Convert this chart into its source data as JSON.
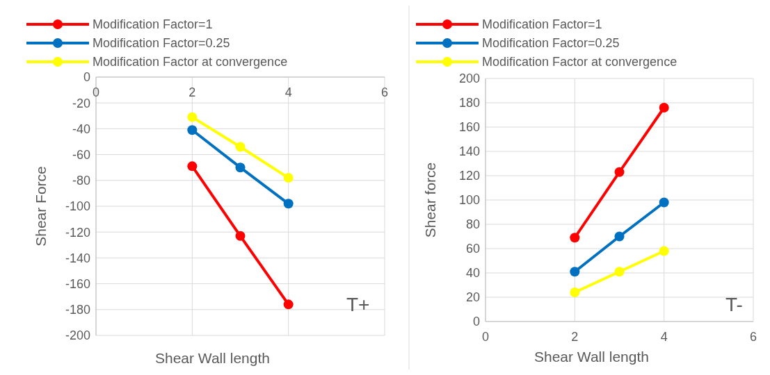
{
  "chart_data": [
    {
      "type": "line",
      "xlabel": "Shear Wall length",
      "ylabel": "Shear Force",
      "x": [
        2,
        3,
        4
      ],
      "xlim": [
        0,
        6
      ],
      "xticks": [
        0,
        2,
        4,
        6
      ],
      "ylim": [
        -200,
        0
      ],
      "yticks": [
        -200,
        -180,
        -160,
        -140,
        -120,
        -100,
        -80,
        -60,
        -40,
        -20,
        0
      ],
      "grid": true,
      "legend": "top",
      "marker": "circle",
      "annotations": [
        "T+"
      ],
      "series": [
        {
          "name": "Modification Factor=1",
          "color": "#ff0000",
          "values": [
            -69,
            -123,
            -176
          ]
        },
        {
          "name": "Modification Factor=0.25",
          "color": "#0070c0",
          "values": [
            -41,
            -70,
            -98
          ]
        },
        {
          "name": "Modification Factor at convergence",
          "color": "#ffff00",
          "values": [
            -31,
            -54,
            -78
          ]
        }
      ]
    },
    {
      "type": "line",
      "xlabel": "Shear Wall length",
      "ylabel": "Shear force",
      "x": [
        2,
        3,
        4
      ],
      "xlim": [
        0,
        6
      ],
      "xticks": [
        0,
        2,
        4,
        6
      ],
      "ylim": [
        0,
        200
      ],
      "yticks": [
        0,
        20,
        40,
        60,
        80,
        100,
        120,
        140,
        160,
        180,
        200
      ],
      "grid": true,
      "legend": "top",
      "marker": "circle",
      "annotations": [
        "T-"
      ],
      "series": [
        {
          "name": "Modification Factor=1",
          "color": "#ff0000",
          "values": [
            69,
            123,
            176
          ]
        },
        {
          "name": "Modification Factor=0.25",
          "color": "#0070c0",
          "values": [
            41,
            70,
            98
          ]
        },
        {
          "name": "Modification Factor at convergence",
          "color": "#ffff00",
          "values": [
            24,
            41,
            58
          ]
        }
      ]
    }
  ]
}
